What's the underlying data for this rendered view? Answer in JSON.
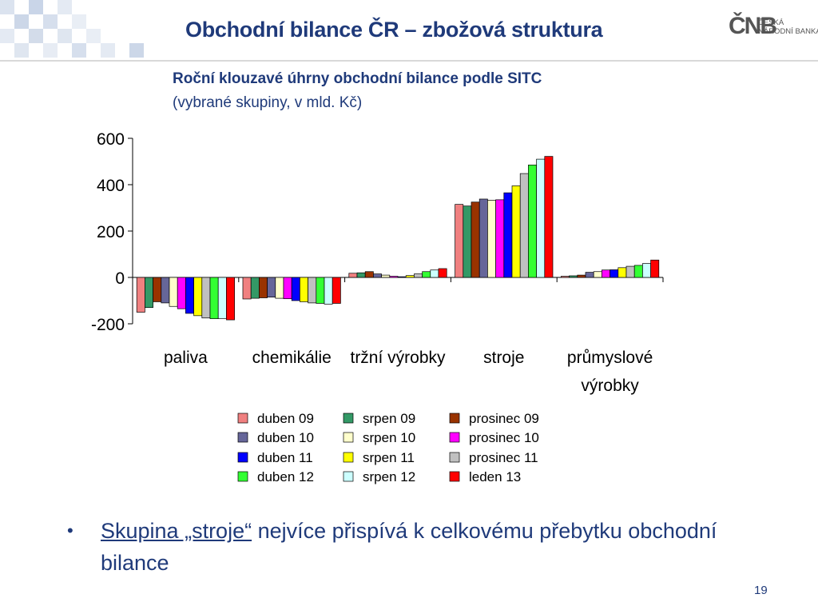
{
  "slide": {
    "title": "Obchodní bilance ČR – zbožová struktura",
    "page_number": "19"
  },
  "logo": {
    "mark": "ČNB",
    "line1": "ČESKÁ",
    "line2": "NÁRODNÍ BANKA"
  },
  "bullet": {
    "link_text": "Skupina „stroje“",
    "rest_text": " nejvíce přispívá k celkovému přebytku obchodní bilance"
  },
  "chart_data": {
    "type": "bar",
    "title": "Roční klouzavé úhrny obchodní bilance podle SITC",
    "subtitle": "(vybrané skupiny, v mld. Kč)",
    "categories": [
      "paliva",
      "chemikálie",
      "tržní výrobky",
      "stroje",
      "průmyslové výrobky"
    ],
    "ylim": [
      -200,
      600
    ],
    "yticks": [
      -200,
      0,
      200,
      400,
      600
    ],
    "legend_position": "bottom",
    "series": [
      {
        "name": "duben 09",
        "color": "#f08080",
        "values": [
          -150,
          -93,
          18,
          315,
          5
        ]
      },
      {
        "name": "srpen 09",
        "color": "#339966",
        "values": [
          -130,
          -90,
          20,
          308,
          7
        ]
      },
      {
        "name": "prosinec 09",
        "color": "#993300",
        "values": [
          -105,
          -88,
          25,
          325,
          10
        ]
      },
      {
        "name": "duben 10",
        "color": "#666699",
        "values": [
          -110,
          -85,
          15,
          338,
          22
        ]
      },
      {
        "name": "srpen 10",
        "color": "#ffffcc",
        "values": [
          -125,
          -90,
          10,
          333,
          25
        ]
      },
      {
        "name": "prosinec 10",
        "color": "#ff00ff",
        "values": [
          -135,
          -92,
          5,
          335,
          32
        ]
      },
      {
        "name": "duben 11",
        "color": "#0000ff",
        "values": [
          -155,
          -100,
          3,
          365,
          33
        ]
      },
      {
        "name": "srpen 11",
        "color": "#ffff00",
        "values": [
          -165,
          -105,
          8,
          395,
          42
        ]
      },
      {
        "name": "prosinec 11",
        "color": "#c0c0c0",
        "values": [
          -175,
          -110,
          15,
          448,
          48
        ]
      },
      {
        "name": "duben 12",
        "color": "#33ff33",
        "values": [
          -178,
          -112,
          25,
          485,
          52
        ]
      },
      {
        "name": "srpen 12",
        "color": "#ccffff",
        "values": [
          -177,
          -115,
          32,
          510,
          60
        ]
      },
      {
        "name": "leden 13",
        "color": "#ff0000",
        "values": [
          -183,
          -112,
          38,
          522,
          75
        ]
      }
    ]
  }
}
